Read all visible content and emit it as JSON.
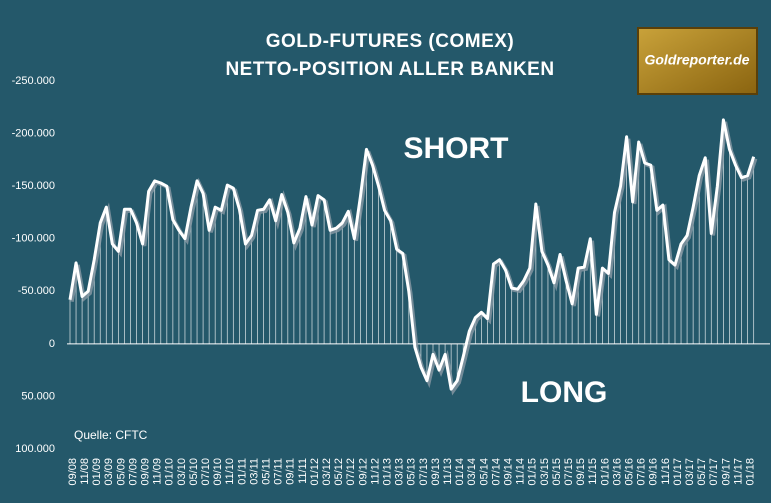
{
  "chart_data": {
    "type": "line",
    "title": [
      "GOLD-FUTURES (COMEX)",
      "NETTO-POSITION ALLER BANKEN"
    ],
    "annotations": [
      "SHORT",
      "LONG",
      "Quelle: CFTC"
    ],
    "logo": "Goldreporter.de",
    "categories": [
      "09/08",
      null,
      "11/08",
      null,
      "01/09",
      null,
      "03/09",
      null,
      "05/09",
      null,
      "07/09",
      null,
      "09/09",
      null,
      "11/09",
      null,
      "01/10",
      null,
      "03/10",
      null,
      "05/10",
      null,
      "07/10",
      null,
      "09/10",
      null,
      "11/10",
      null,
      "01/11",
      null,
      "03/11",
      null,
      "05/11",
      null,
      "07/11",
      null,
      "09/11",
      null,
      "11/11",
      null,
      "01/12",
      null,
      "03/12",
      null,
      "05/12",
      null,
      "07/12",
      null,
      "09/12",
      null,
      "11/12",
      null,
      "01/13",
      null,
      "03/13",
      null,
      "05/13",
      null,
      "07/13",
      null,
      "09/13",
      null,
      "11/13",
      null,
      "01/14",
      null,
      "03/14",
      null,
      "05/14",
      null,
      "07/14",
      null,
      "09/14",
      null,
      "11/14",
      null,
      "01/15",
      null,
      "03/15",
      null,
      "05/15",
      null,
      "07/15",
      null,
      "09/15",
      null,
      "11/15",
      null,
      "01/16",
      null,
      "03/16",
      null,
      "05/16",
      null,
      "07/16",
      null,
      "09/16",
      null,
      "11/16",
      null,
      "01/17",
      null,
      "03/17",
      null,
      "05/17",
      null,
      "07/17",
      null,
      "09/17",
      null,
      "11/17",
      null,
      "01/18",
      null
    ],
    "values": [
      -42000,
      -77000,
      -45000,
      -50000,
      -80000,
      -115000,
      -130000,
      -95000,
      -88000,
      -128000,
      -128000,
      -115000,
      -95000,
      -145000,
      -155000,
      -153000,
      -150000,
      -118000,
      -108000,
      -100000,
      -130000,
      -155000,
      -143000,
      -108000,
      -130000,
      -127000,
      -151000,
      -148000,
      -128000,
      -95000,
      -103000,
      -127000,
      -128000,
      -137000,
      -117000,
      -142000,
      -125000,
      -96000,
      -110000,
      -140000,
      -113000,
      -141000,
      -137000,
      -108000,
      -110000,
      -115000,
      -126000,
      -100000,
      -140000,
      -185000,
      -170000,
      -150000,
      -127000,
      -117000,
      -90000,
      -86000,
      -50000,
      3000,
      22000,
      35000,
      10000,
      25000,
      10000,
      43000,
      35000,
      12000,
      -12000,
      -25000,
      -30000,
      -24000,
      -76000,
      -80000,
      -70000,
      -53000,
      -52000,
      -60000,
      -72000,
      -133000,
      -88000,
      -75000,
      -58000,
      -85000,
      -60000,
      -38000,
      -72000,
      -73000,
      -100000,
      -28000,
      -72000,
      -67000,
      -125000,
      -150000,
      -197000,
      -135000,
      -192000,
      -172000,
      -170000,
      -127000,
      -132000,
      -80000,
      -75000,
      -95000,
      -103000,
      -130000,
      -160000,
      -177000,
      -105000,
      -150000,
      -213000,
      -185000,
      -170000,
      -158000,
      -160000,
      -178000
    ],
    "color": "#ffffff",
    "ylim": [
      -250000,
      100000
    ],
    "y_inverted": true,
    "yticks": [
      {
        "value": -250000,
        "label": "-250.000"
      },
      {
        "value": -200000,
        "label": "-200.000"
      },
      {
        "value": -150000,
        "label": "-150.000"
      },
      {
        "value": -100000,
        "label": "-100.000"
      },
      {
        "value": -50000,
        "label": "-50.000"
      },
      0,
      {
        "value": 50000,
        "label": "50.000"
      },
      {
        "value": 100000,
        "label": "100.000"
      }
    ],
    "grid": false
  }
}
